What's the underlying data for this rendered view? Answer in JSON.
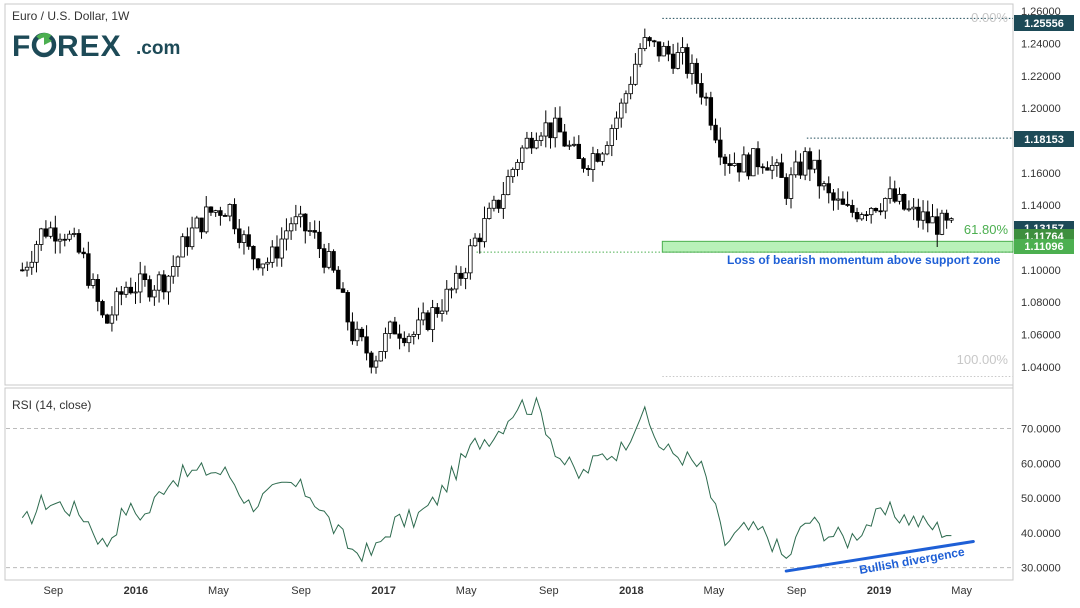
{
  "header": {
    "symbol_title": "Euro / U.S. Dollar, 1W",
    "logo_text": "FOREX.com"
  },
  "colors": {
    "up_candle": "#ffffff",
    "down_candle": "#000000",
    "support_zone": "#b9f1b9",
    "support_border": "#4caf50",
    "rsi_line": "#2e6b4f",
    "divergence_line": "#1e5fd6",
    "annotation_text": "#1e5fd6",
    "price_tag_bg": "#1d4a57",
    "fib_text": "#c7c7c7",
    "fib_61_text": "#4caf50"
  },
  "price_axis": {
    "ticks": [
      "1.26000",
      "1.24000",
      "1.22000",
      "1.20000",
      "1.18000",
      "1.16000",
      "1.14000",
      "1.12000",
      "1.10000",
      "1.08000",
      "1.06000",
      "1.04000"
    ]
  },
  "price_tags": {
    "high": "1.25556",
    "lower_high": "1.18153",
    "last": "1.13157",
    "fib_level": "1.11764",
    "low_support": "1.11096"
  },
  "fib_labels": {
    "zero": "0.00%",
    "sixty_one": "61.80%",
    "hundred": "100.00%"
  },
  "annotations": {
    "support_note": "Loss of bearish momentum above support zone",
    "divergence_note": "Bullish divergence"
  },
  "rsi_panel": {
    "title": "RSI (14, close)",
    "ticks": [
      "70.0000",
      "60.0000",
      "50.0000",
      "40.0000",
      "30.0000"
    ]
  },
  "time_axis": {
    "labels": [
      "Sep",
      "2016",
      "May",
      "Sep",
      "2017",
      "May",
      "Sep",
      "2018",
      "May",
      "Sep",
      "2019",
      "May"
    ]
  },
  "chart_data": [
    {
      "type": "candlestick",
      "title": "Euro / U.S. Dollar, 1W",
      "ylim": [
        1.03,
        1.26
      ],
      "x_range": [
        "2015-07",
        "2019-05"
      ],
      "anchor_points": [
        {
          "x": "2015-07",
          "close": 1.1
        },
        {
          "x": "2015-08",
          "close": 1.125
        },
        {
          "x": "2015-09",
          "close": 1.125
        },
        {
          "x": "2015-10",
          "close": 1.105
        },
        {
          "x": "2015-11",
          "close": 1.065
        },
        {
          "x": "2015-12",
          "close": 1.09
        },
        {
          "x": "2016-01",
          "close": 1.09
        },
        {
          "x": "2016-02",
          "close": 1.095
        },
        {
          "x": "2016-03",
          "close": 1.12
        },
        {
          "x": "2016-04",
          "close": 1.135
        },
        {
          "x": "2016-05",
          "close": 1.14
        },
        {
          "x": "2016-06",
          "close": 1.11
        },
        {
          "x": "2016-07",
          "close": 1.105
        },
        {
          "x": "2016-08",
          "close": 1.13
        },
        {
          "x": "2016-09",
          "close": 1.123
        },
        {
          "x": "2016-10",
          "close": 1.1
        },
        {
          "x": "2016-11",
          "close": 1.06
        },
        {
          "x": "2016-12",
          "close": 1.045
        },
        {
          "x": "2017-01",
          "close": 1.065
        },
        {
          "x": "2017-02",
          "close": 1.06
        },
        {
          "x": "2017-03",
          "close": 1.075
        },
        {
          "x": "2017-04",
          "close": 1.09
        },
        {
          "x": "2017-05",
          "close": 1.12
        },
        {
          "x": "2017-06",
          "close": 1.14
        },
        {
          "x": "2017-07",
          "close": 1.17
        },
        {
          "x": "2017-08",
          "close": 1.19
        },
        {
          "x": "2017-09",
          "close": 1.185
        },
        {
          "x": "2017-10",
          "close": 1.165
        },
        {
          "x": "2017-11",
          "close": 1.175
        },
        {
          "x": "2017-12",
          "close": 1.2
        },
        {
          "x": "2018-01",
          "close": 1.24
        },
        {
          "x": "2018-02",
          "close": 1.235
        },
        {
          "x": "2018-03",
          "close": 1.23
        },
        {
          "x": "2018-04",
          "close": 1.21
        },
        {
          "x": "2018-05",
          "close": 1.17
        },
        {
          "x": "2018-06",
          "close": 1.165
        },
        {
          "x": "2018-07",
          "close": 1.17
        },
        {
          "x": "2018-08",
          "close": 1.15
        },
        {
          "x": "2018-09",
          "close": 1.17
        },
        {
          "x": "2018-10",
          "close": 1.145
        },
        {
          "x": "2018-11",
          "close": 1.135
        },
        {
          "x": "2018-12",
          "close": 1.14
        },
        {
          "x": "2019-01",
          "close": 1.145
        },
        {
          "x": "2019-02",
          "close": 1.135
        },
        {
          "x": "2019-03",
          "close": 1.13
        },
        {
          "x": "2019-04",
          "close": 1.125
        }
      ],
      "levels": [
        {
          "label": "0.00%",
          "value": 1.25556
        },
        {
          "label": "61.80%",
          "value": 1.11764
        },
        {
          "label": "100.00%",
          "value": 1.034
        }
      ],
      "support_zone": [
        1.11096,
        1.11764
      ]
    },
    {
      "type": "line",
      "title": "RSI (14, close)",
      "ylim": [
        28,
        80
      ],
      "reference_lines": [
        70,
        30
      ],
      "anchor_points": [
        {
          "x": "2015-07",
          "y": 42
        },
        {
          "x": "2015-08",
          "y": 49
        },
        {
          "x": "2015-09",
          "y": 48
        },
        {
          "x": "2015-10",
          "y": 45
        },
        {
          "x": "2015-11",
          "y": 36
        },
        {
          "x": "2015-12",
          "y": 47
        },
        {
          "x": "2016-01",
          "y": 45
        },
        {
          "x": "2016-02",
          "y": 55
        },
        {
          "x": "2016-03",
          "y": 57
        },
        {
          "x": "2016-04",
          "y": 58
        },
        {
          "x": "2016-05",
          "y": 57
        },
        {
          "x": "2016-06",
          "y": 48
        },
        {
          "x": "2016-07",
          "y": 51
        },
        {
          "x": "2016-08",
          "y": 54
        },
        {
          "x": "2016-09",
          "y": 51
        },
        {
          "x": "2016-10",
          "y": 42
        },
        {
          "x": "2016-11",
          "y": 35
        },
        {
          "x": "2016-12",
          "y": 34
        },
        {
          "x": "2017-01",
          "y": 43
        },
        {
          "x": "2017-02",
          "y": 44
        },
        {
          "x": "2017-03",
          "y": 49
        },
        {
          "x": "2017-04",
          "y": 58
        },
        {
          "x": "2017-05",
          "y": 66
        },
        {
          "x": "2017-06",
          "y": 69
        },
        {
          "x": "2017-07",
          "y": 77
        },
        {
          "x": "2017-08",
          "y": 76
        },
        {
          "x": "2017-09",
          "y": 62
        },
        {
          "x": "2017-10",
          "y": 56
        },
        {
          "x": "2017-11",
          "y": 62
        },
        {
          "x": "2017-12",
          "y": 64
        },
        {
          "x": "2018-01",
          "y": 75
        },
        {
          "x": "2018-02",
          "y": 64
        },
        {
          "x": "2018-03",
          "y": 62
        },
        {
          "x": "2018-04",
          "y": 58
        },
        {
          "x": "2018-05",
          "y": 37
        },
        {
          "x": "2018-06",
          "y": 41
        },
        {
          "x": "2018-07",
          "y": 40
        },
        {
          "x": "2018-08",
          "y": 32
        },
        {
          "x": "2018-09",
          "y": 44
        },
        {
          "x": "2018-10",
          "y": 40
        },
        {
          "x": "2018-11",
          "y": 38
        },
        {
          "x": "2018-12",
          "y": 43
        },
        {
          "x": "2019-01",
          "y": 46
        },
        {
          "x": "2019-02",
          "y": 44
        },
        {
          "x": "2019-03",
          "y": 42
        },
        {
          "x": "2019-04",
          "y": 40
        }
      ],
      "divergence_line": {
        "from": {
          "x": "2018-08",
          "y": 29
        },
        "to": {
          "x": "2019-04",
          "y": 37.5
        }
      }
    }
  ]
}
